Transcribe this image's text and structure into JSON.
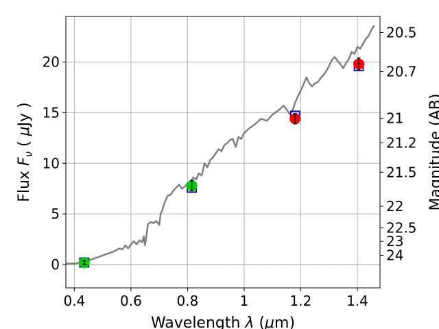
{
  "chart_data": {
    "type": "line",
    "xlabel": "Wavelength  λ (μm)",
    "ylabel": "Flux  F_ν  ( μJy )",
    "y2label": "Magnitude (AB)",
    "xlim": [
      0.37,
      1.48
    ],
    "ylim": [
      -2.3,
      24.5
    ],
    "grid": true,
    "x_ticks": [
      0.4,
      0.6,
      0.8,
      1,
      1.2,
      1.4
    ],
    "x_tick_labels": [
      "0.4",
      "0.6",
      "0.8",
      "1",
      "1.2",
      "1.4"
    ],
    "y_ticks": [
      0,
      5,
      10,
      15,
      20
    ],
    "y_tick_labels": [
      "0",
      "5",
      "10",
      "15",
      "20"
    ],
    "mag_ticks": [
      20.5,
      20.7,
      21,
      21.2,
      21.5,
      22,
      22.5,
      23,
      24
    ],
    "mag_tick_labels": [
      "20.5",
      "20.7",
      "21",
      "21.2",
      "21.5",
      "22",
      "22.5",
      "23",
      "24"
    ],
    "zero_line": 0,
    "series": [
      {
        "kind": "spectrum",
        "color": "#808080",
        "x": [
          0.37,
          0.4,
          0.42,
          0.44,
          0.46,
          0.48,
          0.5,
          0.52,
          0.54,
          0.56,
          0.57,
          0.58,
          0.59,
          0.6,
          0.61,
          0.62,
          0.63,
          0.64,
          0.645,
          0.65,
          0.655,
          0.66,
          0.67,
          0.68,
          0.69,
          0.7,
          0.705,
          0.71,
          0.72,
          0.73,
          0.74,
          0.75,
          0.76,
          0.77,
          0.78,
          0.79,
          0.8,
          0.81,
          0.82,
          0.83,
          0.84,
          0.85,
          0.86,
          0.87,
          0.88,
          0.89,
          0.9,
          0.91,
          0.92,
          0.93,
          0.94,
          0.95,
          0.96,
          0.97,
          0.98,
          0.99,
          1.0,
          1.02,
          1.04,
          1.06,
          1.08,
          1.1,
          1.12,
          1.14,
          1.16,
          1.17,
          1.18,
          1.19,
          1.2,
          1.21,
          1.22,
          1.23,
          1.24,
          1.25,
          1.26,
          1.27,
          1.28,
          1.29,
          1.3,
          1.31,
          1.32,
          1.33,
          1.34,
          1.35,
          1.36,
          1.37,
          1.38,
          1.39,
          1.4,
          1.41,
          1.42,
          1.43,
          1.44,
          1.45,
          1.46
        ],
        "values": [
          0.1,
          0.1,
          0.2,
          0.3,
          0.5,
          0.7,
          0.9,
          1.1,
          1.3,
          1.6,
          1.5,
          1.9,
          1.6,
          2.0,
          2.3,
          2.0,
          2.4,
          2.2,
          2.8,
          1.9,
          2.9,
          4.0,
          4.2,
          4.1,
          4.3,
          3.9,
          5.0,
          5.3,
          6.2,
          6.8,
          6.9,
          7.3,
          7.6,
          7.9,
          7.5,
          7.7,
          8.0,
          8.2,
          8.6,
          8.4,
          9.0,
          8.8,
          10.0,
          9.6,
          10.3,
          10.6,
          11.0,
          11.4,
          11.2,
          11.8,
          12.0,
          12.3,
          12.4,
          11.6,
          12.6,
          12.4,
          13.0,
          13.5,
          13.9,
          14.4,
          14.2,
          14.8,
          15.2,
          15.7,
          14.9,
          15.1,
          16.0,
          16.6,
          17.2,
          17.8,
          18.5,
          17.9,
          17.6,
          17.9,
          18.0,
          18.4,
          18.7,
          19.1,
          19.6,
          20.2,
          20.5,
          20.1,
          19.8,
          19.4,
          19.9,
          20.3,
          21.0,
          20.8,
          21.5,
          21.3,
          21.8,
          22.3,
          22.6,
          23.2,
          23.6
        ]
      },
      {
        "kind": "model",
        "marker": "open-square",
        "color": "#0000cc",
        "x": [
          0.435,
          0.815,
          1.18,
          1.405
        ],
        "values": [
          0.2,
          7.6,
          14.7,
          19.6
        ]
      },
      {
        "kind": "observed",
        "marker": "filled-circle",
        "points": [
          {
            "x": 0.435,
            "y": 0.2,
            "err": 0.2,
            "color": "#00cc00"
          },
          {
            "x": 0.815,
            "y": 7.8,
            "err": 0.5,
            "color": "#00cc00"
          },
          {
            "x": 1.18,
            "y": 14.4,
            "err": 0.5,
            "color": "#ff0000"
          },
          {
            "x": 1.405,
            "y": 19.8,
            "err": 0.6,
            "color": "#ff0000"
          }
        ]
      }
    ]
  }
}
